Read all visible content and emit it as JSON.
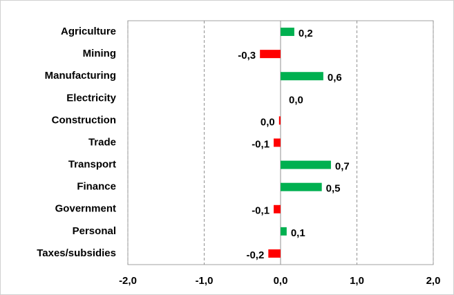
{
  "chart_data": {
    "type": "hbar",
    "categories": [
      "Agriculture",
      "Mining",
      "Manufacturing",
      "Electricity",
      "Construction",
      "Trade",
      "Transport",
      "Finance",
      "Government",
      "Personal",
      "Taxes/subsidies"
    ],
    "values": [
      0.18,
      -0.27,
      0.56,
      0,
      -0.02,
      -0.09,
      0.66,
      0.54,
      -0.09,
      0.08,
      -0.16
    ],
    "value_labels": [
      "0,2",
      "-0,3",
      "0,6",
      "0,0",
      "0,0",
      "-0,1",
      "0,7",
      "0,5",
      "-0,1",
      "0,1",
      "-0,2"
    ],
    "positive_color": "#00b050",
    "negative_color": "#ff0000",
    "xlim": [
      -2,
      2
    ],
    "xticks": [
      {
        "value": -2,
        "label": "-2,0"
      },
      {
        "value": -1,
        "label": "-1,0"
      },
      {
        "value": 0,
        "label": "0,0"
      },
      {
        "value": 1,
        "label": "1,0"
      },
      {
        "value": 2,
        "label": "2,0"
      }
    ],
    "grid": true
  }
}
